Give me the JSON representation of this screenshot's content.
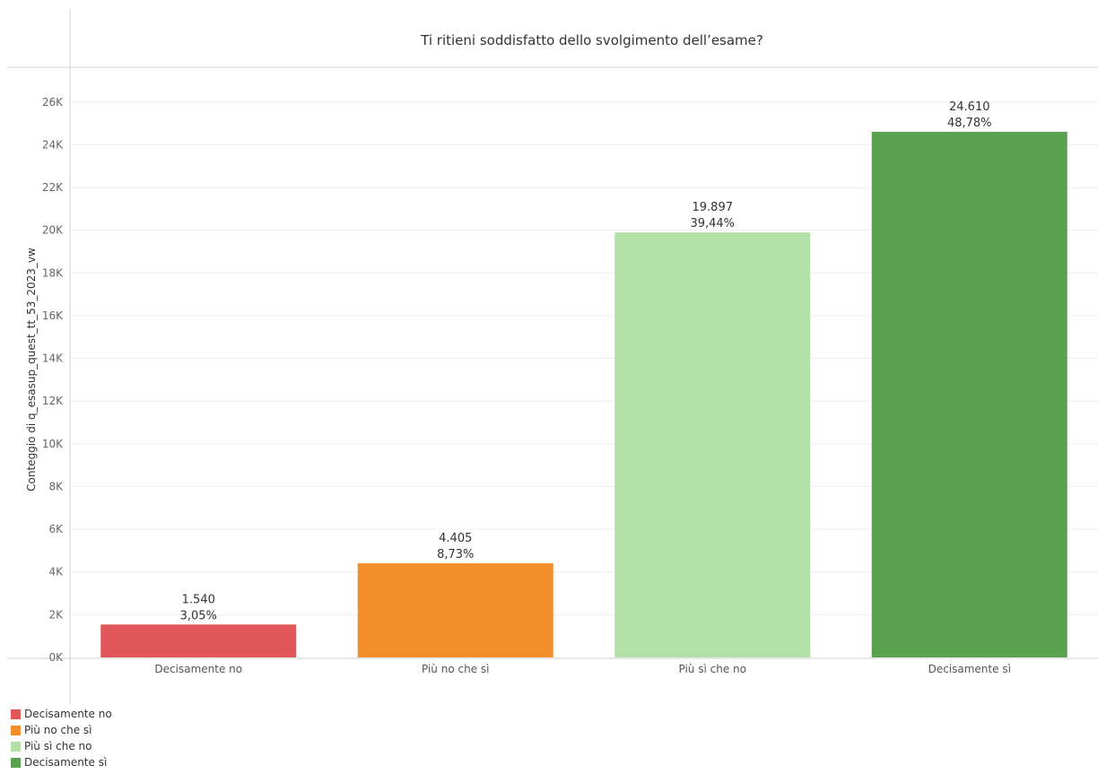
{
  "chart_data": {
    "type": "bar",
    "title": "Ti ritieni soddisfatto dello svolgimento dell’esame?",
    "xlabel": "",
    "ylabel": "Conteggio di q_esasup_quest_tt_53_2023_vw",
    "ylim": [
      0,
      27000
    ],
    "yticks": [
      {
        "value": 0,
        "label": "0K"
      },
      {
        "value": 2000,
        "label": "2K"
      },
      {
        "value": 4000,
        "label": "4K"
      },
      {
        "value": 6000,
        "label": "6K"
      },
      {
        "value": 8000,
        "label": "8K"
      },
      {
        "value": 10000,
        "label": "10K"
      },
      {
        "value": 12000,
        "label": "12K"
      },
      {
        "value": 14000,
        "label": "14K"
      },
      {
        "value": 16000,
        "label": "16K"
      },
      {
        "value": 18000,
        "label": "18K"
      },
      {
        "value": 20000,
        "label": "20K"
      },
      {
        "value": 22000,
        "label": "22K"
      },
      {
        "value": 24000,
        "label": "24K"
      },
      {
        "value": 26000,
        "label": "26K"
      }
    ],
    "categories": [
      "Decisamente no",
      "Più no che sì",
      "Più sì che no",
      "Decisamente sì"
    ],
    "values": [
      1540,
      4405,
      19897,
      24610
    ],
    "value_labels": [
      "1.540",
      "4.405",
      "19.897",
      "24.610"
    ],
    "percent_labels": [
      "3,05%",
      "8,73%",
      "39,44%",
      "48,78%"
    ],
    "colors": [
      "#e15759",
      "#f28e2b",
      "#b3e0a6",
      "#59a14f"
    ],
    "grid": true,
    "legend_position": "bottom-left"
  },
  "legend": {
    "items": [
      {
        "label": "Decisamente no",
        "color": "#e15759"
      },
      {
        "label": "Più no che sì",
        "color": "#f28e2b"
      },
      {
        "label": "Più sì che no",
        "color": "#b3e0a6"
      },
      {
        "label": "Decisamente sì",
        "color": "#59a14f"
      }
    ]
  }
}
